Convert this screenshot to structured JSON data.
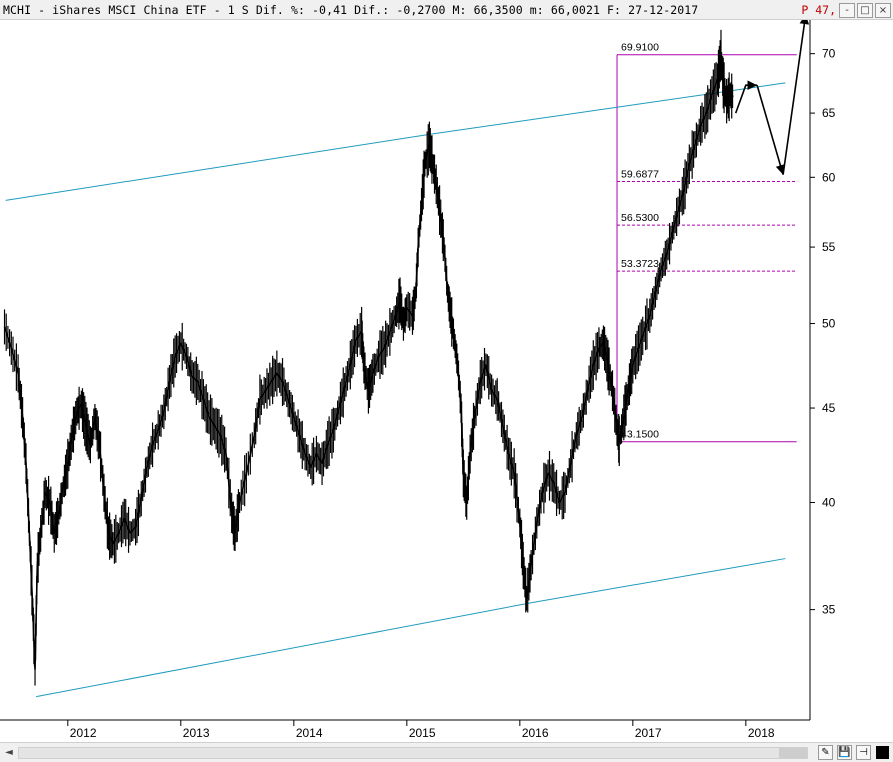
{
  "header": {
    "text": "MCHI - iShares MSCI China ETF -  1 S Dif. %: -0,41 Dif.: -0,2700 M: 66,3500 m: 66,0021 F: 27-12-2017 ",
    "marker_p": "P",
    "marker_value": "47,",
    "buttons": [
      "-",
      "□",
      "×"
    ]
  },
  "bottombar": {
    "scroll_left": "◄",
    "buttons": [
      "✎",
      "💾",
      "⊣"
    ]
  },
  "colors": {
    "price": "#000000",
    "channel": "#1e9bbd",
    "fib": "#b000b0",
    "grid": "#e6e6e6"
  },
  "chart_data": {
    "type": "line",
    "title": "MCHI - iShares MSCI China ETF",
    "timeframe": "1 S",
    "y_scale": "log",
    "ylim": [
      30.5,
      73
    ],
    "y_ticks": [
      35,
      40,
      45,
      50,
      55,
      60,
      65,
      70
    ],
    "x_range": [
      2011.4,
      2018.55
    ],
    "x_ticks": [
      2012,
      2013,
      2014,
      2015,
      2016,
      2017,
      2018
    ],
    "grid": false,
    "series": [
      {
        "values_xy": [
          [
            2011.44,
            49.8
          ],
          [
            2011.5,
            48.5
          ],
          [
            2011.56,
            47.0
          ],
          [
            2011.6,
            44.5
          ],
          [
            2011.63,
            42.0
          ],
          [
            2011.66,
            38.5
          ],
          [
            2011.69,
            35.0
          ],
          [
            2011.71,
            32.5
          ],
          [
            2011.73,
            37.0
          ],
          [
            2011.76,
            38.5
          ],
          [
            2011.8,
            40.5
          ],
          [
            2011.84,
            40.0
          ],
          [
            2011.88,
            38.5
          ],
          [
            2011.92,
            39.5
          ],
          [
            2011.96,
            40.8
          ],
          [
            2012.0,
            42.0
          ],
          [
            2012.04,
            43.5
          ],
          [
            2012.08,
            44.8
          ],
          [
            2012.12,
            45.2
          ],
          [
            2012.16,
            44.0
          ],
          [
            2012.2,
            43.0
          ],
          [
            2012.24,
            44.5
          ],
          [
            2012.28,
            43.0
          ],
          [
            2012.32,
            40.5
          ],
          [
            2012.36,
            38.5
          ],
          [
            2012.4,
            38.0
          ],
          [
            2012.45,
            38.5
          ],
          [
            2012.5,
            39.2
          ],
          [
            2012.55,
            38.5
          ],
          [
            2012.6,
            38.8
          ],
          [
            2012.65,
            40.2
          ],
          [
            2012.7,
            41.8
          ],
          [
            2012.75,
            43.0
          ],
          [
            2012.8,
            43.8
          ],
          [
            2012.85,
            44.8
          ],
          [
            2012.9,
            46.5
          ],
          [
            2012.95,
            48.0
          ],
          [
            2013.0,
            48.8
          ],
          [
            2013.05,
            48.0
          ],
          [
            2013.1,
            46.8
          ],
          [
            2013.15,
            46.5
          ],
          [
            2013.2,
            45.5
          ],
          [
            2013.25,
            44.5
          ],
          [
            2013.3,
            44.0
          ],
          [
            2013.35,
            43.5
          ],
          [
            2013.4,
            42.5
          ],
          [
            2013.45,
            39.5
          ],
          [
            2013.48,
            38.5
          ],
          [
            2013.52,
            40.0
          ],
          [
            2013.58,
            41.5
          ],
          [
            2013.65,
            43.5
          ],
          [
            2013.7,
            45.5
          ],
          [
            2013.75,
            46.0
          ],
          [
            2013.8,
            46.5
          ],
          [
            2013.85,
            47.0
          ],
          [
            2013.9,
            46.5
          ],
          [
            2013.95,
            45.5
          ],
          [
            2014.0,
            44.5
          ],
          [
            2014.05,
            43.5
          ],
          [
            2014.1,
            42.5
          ],
          [
            2014.15,
            41.8
          ],
          [
            2014.2,
            42.5
          ],
          [
            2014.25,
            42.0
          ],
          [
            2014.3,
            43.0
          ],
          [
            2014.35,
            43.8
          ],
          [
            2014.4,
            45.0
          ],
          [
            2014.45,
            46.2
          ],
          [
            2014.5,
            47.5
          ],
          [
            2014.55,
            49.0
          ],
          [
            2014.6,
            49.5
          ],
          [
            2014.62,
            47.5
          ],
          [
            2014.66,
            46.0
          ],
          [
            2014.7,
            47.0
          ],
          [
            2014.75,
            48.0
          ],
          [
            2014.8,
            48.5
          ],
          [
            2014.85,
            49.5
          ],
          [
            2014.9,
            50.5
          ],
          [
            2014.94,
            51.5
          ],
          [
            2014.97,
            50.0
          ],
          [
            2015.0,
            51.0
          ],
          [
            2015.05,
            50.5
          ],
          [
            2015.08,
            52.0
          ],
          [
            2015.1,
            55.0
          ],
          [
            2015.13,
            58.0
          ],
          [
            2015.16,
            61.0
          ],
          [
            2015.2,
            62.5
          ],
          [
            2015.23,
            61.0
          ],
          [
            2015.26,
            59.5
          ],
          [
            2015.3,
            57.0
          ],
          [
            2015.33,
            55.0
          ],
          [
            2015.36,
            52.0
          ],
          [
            2015.39,
            50.5
          ],
          [
            2015.42,
            49.0
          ],
          [
            2015.45,
            47.5
          ],
          [
            2015.48,
            45.0
          ],
          [
            2015.5,
            41.5
          ],
          [
            2015.53,
            40.0
          ],
          [
            2015.56,
            42.5
          ],
          [
            2015.6,
            44.5
          ],
          [
            2015.65,
            46.5
          ],
          [
            2015.7,
            47.5
          ],
          [
            2015.75,
            46.0
          ],
          [
            2015.8,
            45.5
          ],
          [
            2015.85,
            44.0
          ],
          [
            2015.9,
            42.5
          ],
          [
            2015.95,
            41.5
          ],
          [
            2016.0,
            39.0
          ],
          [
            2016.03,
            37.0
          ],
          [
            2016.06,
            35.5
          ],
          [
            2016.1,
            37.0
          ],
          [
            2016.15,
            39.0
          ],
          [
            2016.2,
            40.5
          ],
          [
            2016.25,
            41.5
          ],
          [
            2016.3,
            41.0
          ],
          [
            2016.35,
            40.0
          ],
          [
            2016.4,
            40.5
          ],
          [
            2016.45,
            42.0
          ],
          [
            2016.5,
            43.5
          ],
          [
            2016.55,
            44.5
          ],
          [
            2016.6,
            46.0
          ],
          [
            2016.65,
            47.5
          ],
          [
            2016.7,
            48.5
          ],
          [
            2016.74,
            48.8
          ],
          [
            2016.78,
            47.5
          ],
          [
            2016.82,
            46.0
          ],
          [
            2016.86,
            43.8
          ],
          [
            2016.88,
            43.2
          ],
          [
            2016.92,
            44.5
          ],
          [
            2016.96,
            46.0
          ],
          [
            2017.0,
            47.5
          ],
          [
            2017.05,
            48.5
          ],
          [
            2017.1,
            49.5
          ],
          [
            2017.15,
            50.5
          ],
          [
            2017.2,
            52.0
          ],
          [
            2017.25,
            53.5
          ],
          [
            2017.3,
            54.5
          ],
          [
            2017.35,
            56.0
          ],
          [
            2017.4,
            57.5
          ],
          [
            2017.45,
            59.0
          ],
          [
            2017.5,
            61.0
          ],
          [
            2017.55,
            62.5
          ],
          [
            2017.6,
            64.0
          ],
          [
            2017.65,
            65.0
          ],
          [
            2017.7,
            66.5
          ],
          [
            2017.75,
            67.8
          ],
          [
            2017.78,
            69.9
          ],
          [
            2017.8,
            67.5
          ],
          [
            2017.83,
            66.0
          ],
          [
            2017.86,
            66.5
          ],
          [
            2017.89,
            66.35
          ]
        ]
      }
    ],
    "fibonacci_levels": [
      {
        "label": "69.9100",
        "value": 69.91
      },
      {
        "label": "59.6877",
        "value": 59.6877
      },
      {
        "label": "56.5300",
        "value": 56.53
      },
      {
        "label": "53.3723",
        "value": 53.3723
      },
      {
        "label": "43.1500",
        "value": 43.15
      }
    ],
    "fibonacci_x": [
      2016.86,
      2018.45
    ],
    "channel_lines": [
      {
        "from": [
          2011.45,
          58.3
        ],
        "to": [
          2015.2,
          63.3
        ]
      },
      {
        "from": [
          2015.2,
          63.3
        ],
        "to": [
          2018.35,
          67.5
        ]
      },
      {
        "from": [
          2011.72,
          31.4
        ],
        "to": [
          2016.1,
          35.3
        ]
      },
      {
        "from": [
          2016.1,
          35.3
        ],
        "to": [
          2018.35,
          37.3
        ]
      }
    ],
    "projection_arrows": [
      [
        [
          2017.91,
          65.0
        ],
        [
          2018.0,
          67.3
        ],
        [
          2018.1,
          67.3
        ]
      ],
      [
        [
          2018.1,
          67.3
        ],
        [
          2018.33,
          60.2
        ]
      ],
      [
        [
          2018.33,
          60.2
        ],
        [
          2018.53,
          73.5
        ]
      ]
    ]
  }
}
